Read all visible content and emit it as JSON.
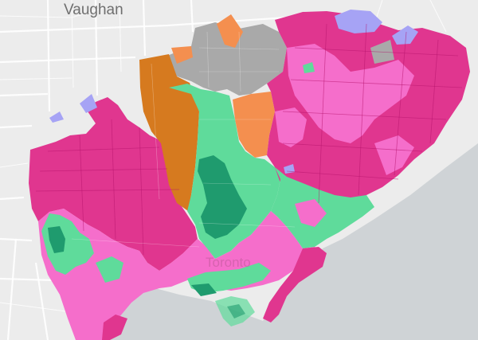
{
  "map": {
    "labels": {
      "city_north": "Vaughan",
      "city_center": "Toronto"
    },
    "colors": {
      "land": "#ececec",
      "water": "#cfd3d6",
      "road": "#ffffff",
      "pink_dark": "#e0368f",
      "pink_light": "#f56ecb",
      "green_light": "#5fdb9b",
      "green_dark": "#1f9b6e",
      "orange_dark": "#d67a1f",
      "orange_light": "#f48f4f",
      "gray": "#a9a9a9",
      "purple": "#a6a3f5"
    }
  }
}
